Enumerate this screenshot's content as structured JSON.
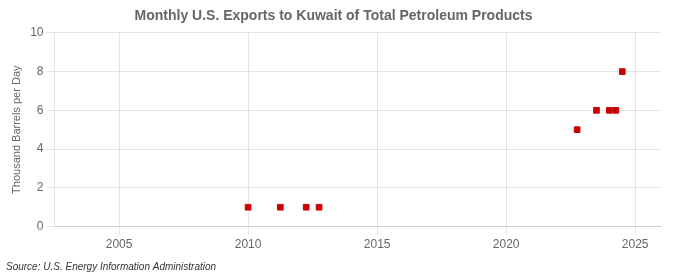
{
  "chart_data": {
    "type": "scatter",
    "title": "Monthly U.S. Exports to Kuwait of Total Petroleum Products",
    "ylabel": "Thousand Barrels per Day",
    "annotations": [
      "Source: U.S. Energy Information Administration"
    ],
    "x": [
      2010,
      2011.25,
      2012.25,
      2012.75,
      2022.75,
      2023.5,
      2024.0,
      2024.25,
      2024.5
    ],
    "values": [
      1,
      1,
      1,
      1,
      5,
      6,
      6,
      6,
      8
    ],
    "color": "#cc0000",
    "marker": "square",
    "xlim": [
      2002.5,
      2026
    ],
    "ylim": [
      0,
      10
    ],
    "xticks": [
      2005,
      2010,
      2015,
      2020,
      2025
    ],
    "yticks": [
      0,
      2,
      4,
      6,
      8,
      10
    ],
    "grid": true
  }
}
